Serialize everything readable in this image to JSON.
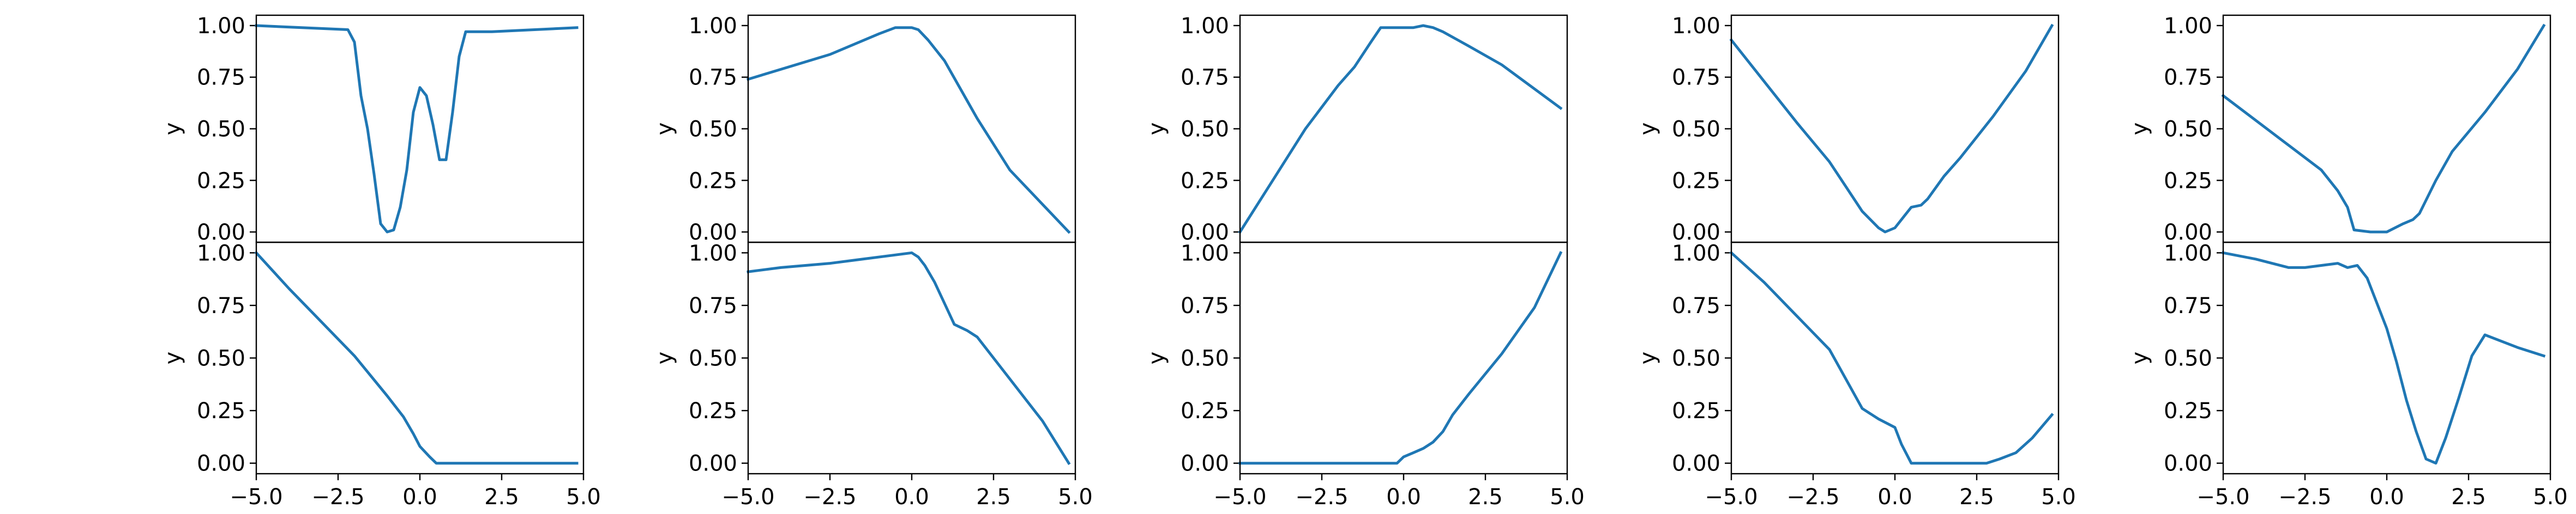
{
  "chart_data": [
    {
      "type": "line",
      "xlabel": "",
      "ylabel": "y",
      "xlim": [
        -5,
        5
      ],
      "ylim": [
        -0.05,
        1.05
      ],
      "xticks": [
        "−5.0",
        "−2.5",
        "0.0",
        "2.5",
        "5.0"
      ],
      "xtick_values": [
        -5,
        -2.5,
        0,
        2.5,
        5
      ],
      "yticks": [
        "0.00",
        "0.25",
        "0.50",
        "0.75",
        "1.00"
      ],
      "ytick_values": [
        0,
        0.25,
        0.5,
        0.75,
        1
      ],
      "show_xticks": false,
      "color": "#1f77b4",
      "x": [
        -5,
        -2.2,
        -2.0,
        -1.8,
        -1.6,
        -1.4,
        -1.2,
        -1.0,
        -0.8,
        -0.6,
        -0.4,
        -0.2,
        0.0,
        0.2,
        0.4,
        0.6,
        0.8,
        1.0,
        1.2,
        1.4,
        1.6,
        1.8,
        2.0,
        2.2,
        4.8
      ],
      "y": [
        1.0,
        0.98,
        0.92,
        0.66,
        0.5,
        0.28,
        0.04,
        0.0,
        0.01,
        0.12,
        0.3,
        0.58,
        0.7,
        0.66,
        0.52,
        0.35,
        0.35,
        0.58,
        0.85,
        0.97,
        0.97,
        0.97,
        0.97,
        0.97,
        0.99
      ]
    },
    {
      "type": "line",
      "xlabel": "",
      "ylabel": "y",
      "xlim": [
        -5,
        5
      ],
      "ylim": [
        -0.05,
        1.05
      ],
      "xticks": [
        "−5.0",
        "−2.5",
        "0.0",
        "2.5",
        "5.0"
      ],
      "xtick_values": [
        -5,
        -2.5,
        0,
        2.5,
        5
      ],
      "yticks": [
        "0.00",
        "0.25",
        "0.50",
        "0.75",
        "1.00"
      ],
      "ytick_values": [
        0,
        0.25,
        0.5,
        0.75,
        1
      ],
      "show_xticks": false,
      "color": "#1f77b4",
      "x": [
        -5,
        -2.5,
        -1.0,
        -0.5,
        0.0,
        0.2,
        0.5,
        1.0,
        2.0,
        3.0,
        4.8
      ],
      "y": [
        0.74,
        0.86,
        0.96,
        0.99,
        0.99,
        0.98,
        0.93,
        0.83,
        0.55,
        0.3,
        0.0
      ]
    },
    {
      "type": "line",
      "xlabel": "",
      "ylabel": "y",
      "xlim": [
        -5,
        5
      ],
      "ylim": [
        -0.05,
        1.05
      ],
      "xticks": [
        "−5.0",
        "−2.5",
        "0.0",
        "2.5",
        "5.0"
      ],
      "xtick_values": [
        -5,
        -2.5,
        0,
        2.5,
        5
      ],
      "yticks": [
        "0.00",
        "0.25",
        "0.50",
        "0.75",
        "1.00"
      ],
      "ytick_values": [
        0,
        0.25,
        0.5,
        0.75,
        1
      ],
      "show_xticks": false,
      "color": "#1f77b4",
      "x": [
        -5,
        -4.0,
        -3.0,
        -2.0,
        -1.5,
        -1.0,
        -0.7,
        -0.5,
        -0.2,
        0.0,
        0.3,
        0.6,
        0.9,
        1.2,
        2.0,
        3.0,
        4.8
      ],
      "y": [
        0.0,
        0.25,
        0.5,
        0.71,
        0.8,
        0.92,
        0.99,
        0.99,
        0.99,
        0.99,
        0.99,
        1.0,
        0.99,
        0.97,
        0.9,
        0.81,
        0.6
      ]
    },
    {
      "type": "line",
      "xlabel": "",
      "ylabel": "y",
      "xlim": [
        -5,
        5
      ],
      "ylim": [
        -0.05,
        1.05
      ],
      "xticks": [
        "−5.0",
        "−2.5",
        "0.0",
        "2.5",
        "5.0"
      ],
      "xtick_values": [
        -5,
        -2.5,
        0,
        2.5,
        5
      ],
      "yticks": [
        "0.00",
        "0.25",
        "0.50",
        "0.75",
        "1.00"
      ],
      "ytick_values": [
        0,
        0.25,
        0.5,
        0.75,
        1
      ],
      "show_xticks": false,
      "color": "#1f77b4",
      "x": [
        -5,
        -4.0,
        -3.0,
        -2.0,
        -1.5,
        -1.0,
        -0.5,
        -0.3,
        0.0,
        0.3,
        0.5,
        0.8,
        1.0,
        1.5,
        2.0,
        3.0,
        4.0,
        4.8
      ],
      "y": [
        0.93,
        0.73,
        0.53,
        0.34,
        0.22,
        0.1,
        0.02,
        0.0,
        0.02,
        0.08,
        0.12,
        0.13,
        0.16,
        0.27,
        0.36,
        0.56,
        0.78,
        1.0
      ]
    },
    {
      "type": "line",
      "xlabel": "",
      "ylabel": "y",
      "xlim": [
        -5,
        5
      ],
      "ylim": [
        -0.05,
        1.05
      ],
      "xticks": [
        "−5.0",
        "−2.5",
        "0.0",
        "2.5",
        "5.0"
      ],
      "xtick_values": [
        -5,
        -2.5,
        0,
        2.5,
        5
      ],
      "yticks": [
        "0.00",
        "0.25",
        "0.50",
        "0.75",
        "1.00"
      ],
      "ytick_values": [
        0,
        0.25,
        0.5,
        0.75,
        1
      ],
      "show_xticks": false,
      "color": "#1f77b4",
      "x": [
        -5,
        -4.0,
        -3.0,
        -2.0,
        -1.5,
        -1.2,
        -1.0,
        -0.5,
        0.0,
        0.5,
        0.8,
        1.0,
        1.5,
        2.0,
        3.0,
        4.0,
        4.8
      ],
      "y": [
        0.66,
        0.54,
        0.42,
        0.3,
        0.2,
        0.12,
        0.01,
        0.0,
        0.0,
        0.04,
        0.06,
        0.09,
        0.25,
        0.39,
        0.58,
        0.79,
        1.0
      ]
    },
    {
      "type": "line",
      "xlabel": "",
      "ylabel": "y",
      "xlim": [
        -5,
        5
      ],
      "ylim": [
        -0.05,
        1.05
      ],
      "xticks": [
        "−5.0",
        "−2.5",
        "0.0",
        "2.5",
        "5.0"
      ],
      "xtick_values": [
        -5,
        -2.5,
        0,
        2.5,
        5
      ],
      "yticks": [
        "0.00",
        "0.25",
        "0.50",
        "0.75",
        "1.00"
      ],
      "ytick_values": [
        0,
        0.25,
        0.5,
        0.75,
        1
      ],
      "show_xticks": true,
      "color": "#1f77b4",
      "x": [
        -5,
        -4.0,
        -3.0,
        -2.0,
        -1.0,
        -0.5,
        -0.2,
        0.0,
        0.3,
        0.5,
        1.0,
        4.8
      ],
      "y": [
        1.0,
        0.83,
        0.67,
        0.51,
        0.32,
        0.22,
        0.14,
        0.08,
        0.03,
        0.0,
        0.0,
        0.0
      ]
    },
    {
      "type": "line",
      "xlabel": "",
      "ylabel": "y",
      "xlim": [
        -5,
        5
      ],
      "ylim": [
        -0.05,
        1.05
      ],
      "xticks": [
        "−5.0",
        "−2.5",
        "0.0",
        "2.5",
        "5.0"
      ],
      "xtick_values": [
        -5,
        -2.5,
        0,
        2.5,
        5
      ],
      "yticks": [
        "0.00",
        "0.25",
        "0.50",
        "0.75",
        "1.00"
      ],
      "ytick_values": [
        0,
        0.25,
        0.5,
        0.75,
        1
      ],
      "show_xticks": true,
      "color": "#1f77b4",
      "x": [
        -5,
        -4.0,
        -2.5,
        -1.5,
        -0.5,
        0.0,
        0.2,
        0.4,
        0.7,
        1.0,
        1.3,
        1.7,
        2.0,
        3.0,
        4.0,
        4.8
      ],
      "y": [
        0.91,
        0.93,
        0.95,
        0.97,
        0.99,
        1.0,
        0.98,
        0.94,
        0.86,
        0.76,
        0.66,
        0.63,
        0.6,
        0.4,
        0.2,
        0.0
      ]
    },
    {
      "type": "line",
      "xlabel": "",
      "ylabel": "y",
      "xlim": [
        -5,
        5
      ],
      "ylim": [
        -0.05,
        1.05
      ],
      "xticks": [
        "−5.0",
        "−2.5",
        "0.0",
        "2.5",
        "5.0"
      ],
      "xtick_values": [
        -5,
        -2.5,
        0,
        2.5,
        5
      ],
      "yticks": [
        "0.00",
        "0.25",
        "0.50",
        "0.75",
        "1.00"
      ],
      "ytick_values": [
        0,
        0.25,
        0.5,
        0.75,
        1
      ],
      "show_xticks": true,
      "color": "#1f77b4",
      "x": [
        -5,
        -3.0,
        -1.0,
        -0.2,
        0.0,
        0.3,
        0.6,
        0.9,
        1.2,
        1.5,
        2.0,
        3.0,
        4.0,
        4.8
      ],
      "y": [
        0.0,
        0.0,
        0.0,
        0.0,
        0.03,
        0.05,
        0.07,
        0.1,
        0.15,
        0.23,
        0.33,
        0.52,
        0.74,
        1.0
      ]
    },
    {
      "type": "line",
      "xlabel": "",
      "ylabel": "y",
      "xlim": [
        -5,
        5
      ],
      "ylim": [
        -0.05,
        1.05
      ],
      "xticks": [
        "−5.0",
        "−2.5",
        "0.0",
        "2.5",
        "5.0"
      ],
      "xtick_values": [
        -5,
        -2.5,
        0,
        2.5,
        5
      ],
      "yticks": [
        "0.00",
        "0.25",
        "0.50",
        "0.75",
        "1.00"
      ],
      "ytick_values": [
        0,
        0.25,
        0.5,
        0.75,
        1
      ],
      "show_xticks": true,
      "color": "#1f77b4",
      "x": [
        -5,
        -4.0,
        -3.0,
        -2.0,
        -1.5,
        -1.0,
        -0.5,
        0.0,
        0.2,
        0.5,
        1.0,
        2.0,
        2.8,
        3.2,
        3.7,
        4.2,
        4.8
      ],
      "y": [
        1.0,
        0.86,
        0.7,
        0.54,
        0.4,
        0.26,
        0.21,
        0.17,
        0.09,
        0.0,
        0.0,
        0.0,
        0.0,
        0.02,
        0.05,
        0.12,
        0.23
      ]
    },
    {
      "type": "line",
      "xlabel": "",
      "ylabel": "y",
      "xlim": [
        -5,
        5
      ],
      "ylim": [
        -0.05,
        1.05
      ],
      "xticks": [
        "−5.0",
        "−2.5",
        "0.0",
        "2.5",
        "5.0"
      ],
      "xtick_values": [
        -5,
        -2.5,
        0,
        2.5,
        5
      ],
      "yticks": [
        "0.00",
        "0.25",
        "0.50",
        "0.75",
        "1.00"
      ],
      "ytick_values": [
        0,
        0.25,
        0.5,
        0.75,
        1
      ],
      "show_xticks": true,
      "color": "#1f77b4",
      "x": [
        -5,
        -4.0,
        -3.0,
        -2.5,
        -2.0,
        -1.5,
        -1.2,
        -0.9,
        -0.6,
        -0.3,
        0.0,
        0.3,
        0.6,
        0.9,
        1.2,
        1.5,
        1.8,
        2.2,
        2.6,
        3.0,
        4.0,
        4.8
      ],
      "y": [
        1.0,
        0.97,
        0.93,
        0.93,
        0.94,
        0.95,
        0.93,
        0.94,
        0.88,
        0.76,
        0.64,
        0.48,
        0.3,
        0.15,
        0.02,
        0.0,
        0.12,
        0.31,
        0.51,
        0.61,
        0.55,
        0.51
      ]
    }
  ]
}
